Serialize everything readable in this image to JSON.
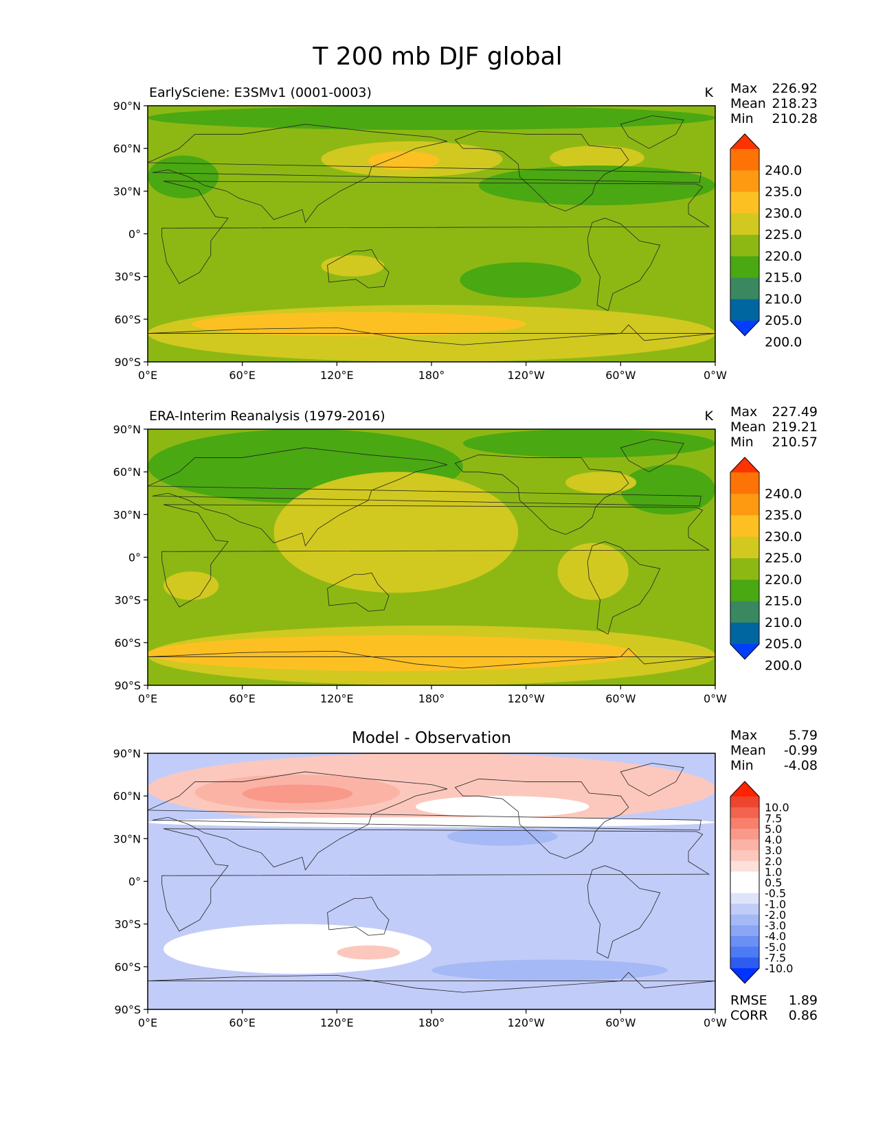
{
  "page": {
    "title": "T 200 mb DJF global"
  },
  "colors": {
    "test_ref_levels": [
      "#003EFF",
      "#0066A0",
      "#3A8860",
      "#4AA812",
      "#8DB814",
      "#D1C920",
      "#FDC022",
      "#FE9A12",
      "#FE7306",
      "#FF3300"
    ],
    "diff_levels": [
      "#0033FF",
      "#2F5CF0",
      "#4D7AF5",
      "#6A8FF5",
      "#8AA6F5",
      "#A5B9F6",
      "#C2CCF8",
      "#DEE4FA",
      "#FFFFFF",
      "#FFFFFF",
      "#FCE0DA",
      "#FCC8BD",
      "#FBB3A6",
      "#F9998A",
      "#F77F6C",
      "#F3634E",
      "#EE4530",
      "#FF2200"
    ],
    "coast": "#222222"
  },
  "chart_data": [
    {
      "type": "heatmap",
      "panel": "test",
      "title": "EarlySciene: E3SMv1 (0001-0003)",
      "units": "K",
      "stats": {
        "max": "226.92",
        "mean": "218.23",
        "min": "210.28"
      },
      "x_ticks": [
        "0°E",
        "60°E",
        "120°E",
        "180°",
        "120°W",
        "60°W",
        "0°W"
      ],
      "y_ticks": [
        "90°N",
        "60°N",
        "30°N",
        "0°",
        "30°S",
        "60°S",
        "90°S"
      ],
      "xlim": [
        0,
        360
      ],
      "ylim": [
        -90,
        90
      ],
      "colorbar_levels": [
        "240.0",
        "235.0",
        "230.0",
        "225.0",
        "220.0",
        "215.0",
        "210.0",
        "205.0",
        "200.0"
      ],
      "background_value": 218,
      "regions": [
        {
          "lon": [
            0,
            360
          ],
          "lat": [
            73,
            90
          ],
          "value": 213
        },
        {
          "lon": [
            0,
            360
          ],
          "lat": [
            -90,
            -50
          ],
          "value": 222
        },
        {
          "lon": [
            28,
            240
          ],
          "lat": [
            -72,
            -55
          ],
          "value": 226
        },
        {
          "lon": [
            110,
            225
          ],
          "lat": [
            40,
            65
          ],
          "value": 222
        },
        {
          "lon": [
            140,
            185
          ],
          "lat": [
            45,
            58
          ],
          "value": 226
        },
        {
          "lon": [
            255,
            315
          ],
          "lat": [
            45,
            62
          ],
          "value": 222
        },
        {
          "lon": [
            210,
            360
          ],
          "lat": [
            20,
            48
          ],
          "value": 213
        },
        {
          "lon": [
            0,
            45
          ],
          "lat": [
            25,
            55
          ],
          "value": 213
        },
        {
          "lon": [
            198,
            275
          ],
          "lat": [
            -45,
            -20
          ],
          "value": 213
        },
        {
          "lon": [
            110,
            150
          ],
          "lat": [
            -30,
            -15
          ],
          "value": 222
        }
      ]
    },
    {
      "type": "heatmap",
      "panel": "reference",
      "title": "ERA-Interim Reanalysis (1979-2016)",
      "units": "K",
      "stats": {
        "max": "227.49",
        "mean": "219.21",
        "min": "210.57"
      },
      "x_ticks": [
        "0°E",
        "60°E",
        "120°E",
        "180°",
        "120°W",
        "60°W",
        "0°W"
      ],
      "y_ticks": [
        "90°N",
        "60°N",
        "30°N",
        "0°",
        "30°S",
        "60°S",
        "90°S"
      ],
      "xlim": [
        0,
        360
      ],
      "ylim": [
        -90,
        90
      ],
      "colorbar_levels": [
        "240.0",
        "235.0",
        "230.0",
        "225.0",
        "220.0",
        "215.0",
        "210.0",
        "205.0",
        "200.0"
      ],
      "background_value": 218,
      "regions": [
        {
          "lon": [
            0,
            200
          ],
          "lat": [
            38,
            90
          ],
          "value": 213
        },
        {
          "lon": [
            200,
            360
          ],
          "lat": [
            70,
            90
          ],
          "value": 213
        },
        {
          "lon": [
            300,
            360
          ],
          "lat": [
            30,
            65
          ],
          "value": 213
        },
        {
          "lon": [
            80,
            235
          ],
          "lat": [
            -25,
            60
          ],
          "value": 222
        },
        {
          "lon": [
            260,
            305
          ],
          "lat": [
            -30,
            10
          ],
          "value": 222
        },
        {
          "lon": [
            10,
            45
          ],
          "lat": [
            -30,
            -10
          ],
          "value": 222
        },
        {
          "lon": [
            265,
            310
          ],
          "lat": [
            45,
            60
          ],
          "value": 222
        },
        {
          "lon": [
            0,
            360
          ],
          "lat": [
            -90,
            -48
          ],
          "value": 222
        },
        {
          "lon": [
            0,
            310
          ],
          "lat": [
            -80,
            -55
          ],
          "value": 226
        }
      ]
    },
    {
      "type": "heatmap",
      "panel": "difference",
      "title": "Model - Observation",
      "units": "",
      "stats": {
        "max": "5.79",
        "mean": "-0.99",
        "min": "-4.08"
      },
      "metrics": {
        "rmse": "1.89",
        "corr": "0.86"
      },
      "x_ticks": [
        "0°E",
        "60°E",
        "120°E",
        "180°",
        "120°W",
        "60°W",
        "0°W"
      ],
      "y_ticks": [
        "90°N",
        "60°N",
        "30°N",
        "0°",
        "30°S",
        "60°S",
        "90°S"
      ],
      "xlim": [
        0,
        360
      ],
      "ylim": [
        -90,
        90
      ],
      "colorbar_levels": [
        "10.0",
        "7.5",
        "5.0",
        "4.0",
        "3.0",
        "2.0",
        "1.0",
        "0.5",
        "-0.5",
        "-1.0",
        "-2.0",
        "-3.0",
        "-4.0",
        "-5.0",
        "-7.5",
        "-10.0"
      ],
      "background_value": -1.5,
      "regions": [
        {
          "lon": [
            0,
            360
          ],
          "lat": [
            40,
            90
          ],
          "value": 1.5
        },
        {
          "lon": [
            30,
            160
          ],
          "lat": [
            50,
            75
          ],
          "value": 2.5
        },
        {
          "lon": [
            60,
            130
          ],
          "lat": [
            55,
            68
          ],
          "value": 3.5
        },
        {
          "lon": [
            0,
            360
          ],
          "lat": [
            38,
            45
          ],
          "value": 0
        },
        {
          "lon": [
            170,
            280
          ],
          "lat": [
            45,
            60
          ],
          "value": 0
        },
        {
          "lon": [
            0,
            360
          ],
          "lat": [
            -70,
            -30
          ],
          "value": -2
        },
        {
          "lon": [
            10,
            180
          ],
          "lat": [
            -65,
            -30
          ],
          "value": 0
        },
        {
          "lon": [
            120,
            160
          ],
          "lat": [
            -55,
            -45
          ],
          "value": 1.5
        },
        {
          "lon": [
            180,
            330
          ],
          "lat": [
            -70,
            -55
          ],
          "value": -3
        },
        {
          "lon": [
            190,
            260
          ],
          "lat": [
            25,
            38
          ],
          "value": -3
        }
      ]
    }
  ]
}
